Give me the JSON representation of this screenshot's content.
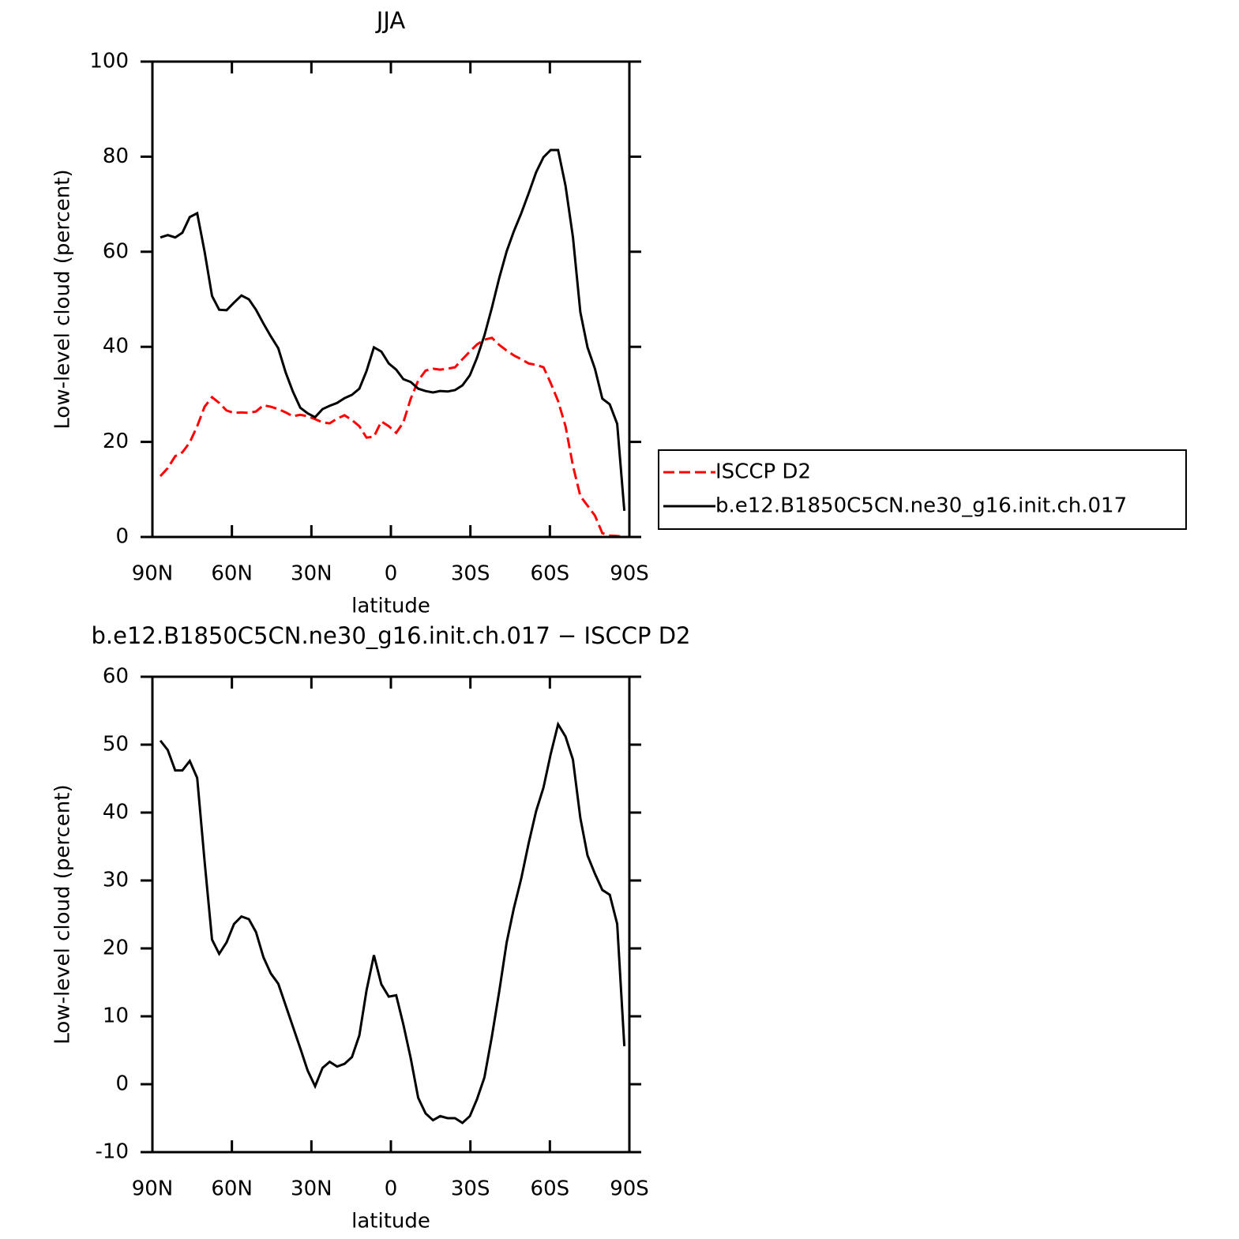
{
  "chart_data": [
    {
      "type": "line",
      "title": "JJA",
      "xlabel": "latitude",
      "ylabel": "Low-level cloud (percent)",
      "x": [
        87.0,
        84.2,
        81.4,
        78.7,
        75.9,
        73.1,
        70.3,
        67.5,
        64.8,
        62.0,
        59.2,
        56.4,
        53.6,
        50.9,
        48.1,
        45.3,
        42.5,
        39.7,
        37.0,
        34.2,
        31.4,
        28.6,
        25.8,
        23.1,
        20.3,
        17.5,
        14.7,
        11.9,
        9.2,
        6.4,
        3.6,
        0.8,
        -2.0,
        -4.7,
        -7.5,
        -10.3,
        -13.1,
        -15.9,
        -18.6,
        -21.4,
        -24.2,
        -27.0,
        -29.8,
        -32.5,
        -35.3,
        -38.1,
        -40.9,
        -43.7,
        -46.4,
        -49.2,
        -52.0,
        -54.8,
        -57.6,
        -60.3,
        -63.1,
        -65.9,
        -68.7,
        -71.5,
        -74.2,
        -77.0,
        -79.8,
        -82.6,
        -85.4,
        -88.1
      ],
      "series": [
        {
          "name": "ISCCP D2",
          "color": "#ff0000",
          "line_style": "dashed",
          "values": [
            12.8,
            14.5,
            17,
            17.8,
            19.9,
            23.3,
            27.4,
            29.4,
            28.2,
            26.6,
            26.1,
            26.2,
            26.1,
            26.4,
            27.7,
            27.4,
            26.9,
            26.2,
            25.4,
            25.7,
            25.4,
            24.8,
            24.1,
            23.9,
            24.9,
            25.6,
            24.6,
            23.3,
            20.9,
            21.1,
            24.3,
            23.3,
            21.9,
            24.1,
            29.1,
            32.9,
            35,
            35.4,
            35.2,
            35.4,
            35.7,
            37.4,
            39,
            40.5,
            41.5,
            41.9,
            40.4,
            39.2,
            38.2,
            37.4,
            36.5,
            36.2,
            35.7,
            32.4,
            28.6,
            23.3,
            15,
            8.6,
            6.6,
            4.5,
            0.8,
            0.3,
            0.2,
            0
          ]
        },
        {
          "name": "b.e12.B1850C5CN.ne30_g16.init.ch.017",
          "color": "#000000",
          "line_style": "solid",
          "values": [
            63,
            63.5,
            63,
            64,
            67.3,
            68.1,
            60,
            50.7,
            47.8,
            47.7,
            49.3,
            50.8,
            50,
            47.8,
            44.9,
            42.2,
            39.7,
            34.6,
            30.6,
            27.2,
            26,
            25.2,
            26.9,
            27.6,
            28.2,
            29.2,
            29.9,
            31.2,
            34.9,
            39.9,
            39,
            36.5,
            35.2,
            33.2,
            32.6,
            31.2,
            30.7,
            30.4,
            30.7,
            30.6,
            30.9,
            31.9,
            34,
            37.7,
            42.4,
            48.2,
            54.5,
            60.1,
            64.3,
            68.1,
            72.3,
            76.7,
            79.9,
            81.4,
            81.4,
            73.9,
            63.1,
            47.3,
            39.9,
            35.4,
            29.1,
            27.9,
            23.8,
            5.5
          ]
        }
      ],
      "xlim": [
        90,
        -90
      ],
      "xticks": [
        {
          "value": 90,
          "label": "90N"
        },
        {
          "value": 60,
          "label": "60N"
        },
        {
          "value": 30,
          "label": "30N"
        },
        0,
        {
          "value": -30,
          "label": "30S"
        },
        {
          "value": -60,
          "label": "60S"
        },
        {
          "value": -90,
          "label": "90S"
        }
      ],
      "ylim": [
        0,
        100
      ],
      "yticks": [
        0,
        20,
        40,
        60,
        80,
        100
      ],
      "legend": "right"
    },
    {
      "type": "line",
      "title": "b.e12.B1850C5CN.ne30_g16.init.ch.017 − ISCCP D2",
      "xlabel": "latitude",
      "ylabel": "Low-level cloud (percent)",
      "x": [
        87.0,
        84.2,
        81.4,
        78.7,
        75.9,
        73.1,
        70.3,
        67.5,
        64.8,
        62.0,
        59.2,
        56.4,
        53.6,
        50.9,
        48.1,
        45.3,
        42.5,
        39.7,
        37.0,
        34.2,
        31.4,
        28.6,
        25.8,
        23.1,
        20.3,
        17.5,
        14.7,
        11.9,
        9.2,
        6.4,
        3.6,
        0.8,
        -2.0,
        -4.7,
        -7.5,
        -10.3,
        -13.1,
        -15.9,
        -18.6,
        -21.4,
        -24.2,
        -27.0,
        -29.8,
        -32.5,
        -35.3,
        -38.1,
        -40.9,
        -43.7,
        -46.4,
        -49.2,
        -52.0,
        -54.8,
        -57.6,
        -60.3,
        -63.1,
        -65.9,
        -68.7,
        -71.5,
        -74.2,
        -77.0,
        -79.8,
        -82.6,
        -85.4,
        -88.1
      ],
      "values": [
        50.6,
        49.2,
        46.2,
        46.2,
        47.6,
        45.1,
        32.8,
        21.3,
        19.2,
        20.9,
        23.6,
        24.7,
        24.3,
        22.4,
        18.7,
        16.3,
        14.8,
        11.6,
        8.5,
        5.3,
        2.0,
        -0.3,
        2.4,
        3.3,
        2.6,
        3.0,
        4.0,
        7.2,
        13.8,
        19.0,
        14.7,
        12.9,
        13.1,
        8.8,
        3.8,
        -2.0,
        -4.3,
        -5.3,
        -4.7,
        -5.0,
        -5.0,
        -5.7,
        -4.7,
        -2.2,
        1.0,
        7.0,
        13.7,
        20.9,
        25.9,
        30.3,
        35.5,
        40.2,
        43.7,
        48.6,
        53.0,
        51.2,
        47.8,
        39.2,
        33.7,
        31.0,
        28.6,
        27.9,
        23.6,
        5.6
      ],
      "color": "#000000",
      "xlim": [
        90,
        -90
      ],
      "xticks": [
        {
          "value": 90,
          "label": "90N"
        },
        {
          "value": 60,
          "label": "60N"
        },
        {
          "value": 30,
          "label": "30N"
        },
        0,
        {
          "value": -30,
          "label": "30S"
        },
        {
          "value": -60,
          "label": "60S"
        },
        {
          "value": -90,
          "label": "90S"
        }
      ],
      "ylim": [
        -10,
        60
      ],
      "yticks": [
        -10,
        0,
        10,
        20,
        30,
        40,
        50,
        60
      ]
    }
  ]
}
